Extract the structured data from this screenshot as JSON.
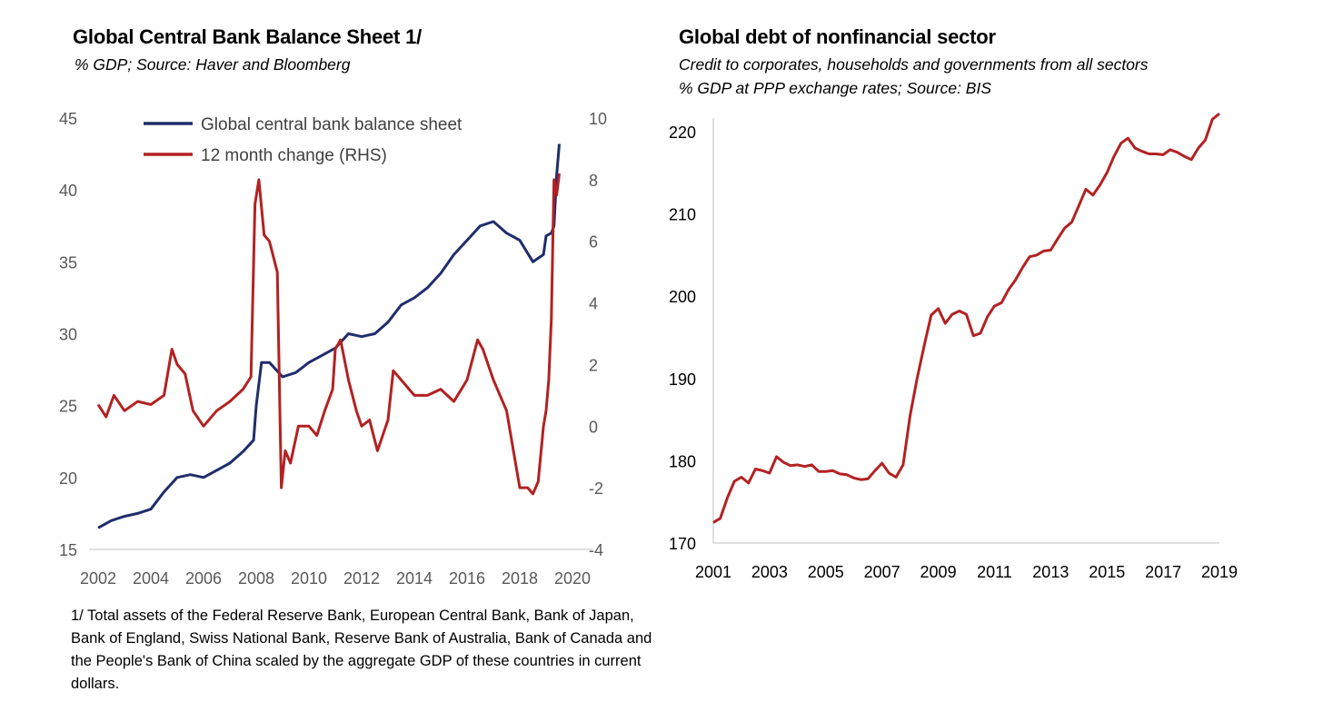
{
  "chart_data": [
    {
      "type": "line",
      "title": "Global Central Bank Balance Sheet 1/",
      "subtitle": "% GDP; Source: Haver and Bloomberg",
      "xlabel": "",
      "ylabel": "",
      "xlim": [
        2002,
        2020
      ],
      "ylim": [
        15,
        45
      ],
      "y2lim": [
        -4,
        10
      ],
      "x_tick_labels": [
        "2002",
        "2004",
        "2006",
        "2008",
        "2010",
        "2012",
        "2014",
        "2016",
        "2018",
        "2020"
      ],
      "y_tick_labels": [
        "15",
        "20",
        "25",
        "30",
        "35",
        "40",
        "45"
      ],
      "y2_tick_labels": [
        "-4",
        "-2",
        "0",
        "2",
        "4",
        "6",
        "8",
        "10"
      ],
      "legend_position": "top-left",
      "grid": false,
      "footnote": "1/ Total assets of the Federal Reserve Bank, European Central Bank, Bank of Japan, Bank of England, Swiss National Bank, Reserve Bank of Australia, Bank of Canada and the People's Bank of China scaled by the aggregate GDP of these countries in current dollars.",
      "series": [
        {
          "name": "Global central bank balance sheet",
          "axis": "left",
          "color": "#1f2d6b",
          "x": [
            2002.0,
            2002.5,
            2003.0,
            2003.5,
            2004.0,
            2004.5,
            2005.0,
            2005.5,
            2006.0,
            2006.5,
            2007.0,
            2007.5,
            2007.9,
            2008.0,
            2008.2,
            2008.5,
            2009.0,
            2009.5,
            2010.0,
            2010.5,
            2011.0,
            2011.5,
            2012.0,
            2012.5,
            2013.0,
            2013.5,
            2014.0,
            2014.5,
            2015.0,
            2015.5,
            2016.0,
            2016.5,
            2017.0,
            2017.5,
            2018.0,
            2018.5,
            2018.9,
            2019.0,
            2019.2,
            2019.3,
            2019.4,
            2019.5
          ],
          "y": [
            16.5,
            17.0,
            17.3,
            17.5,
            17.8,
            19.0,
            20.0,
            20.2,
            20.0,
            20.5,
            21.0,
            21.8,
            22.6,
            25.0,
            28.0,
            28.0,
            27.0,
            27.3,
            28.0,
            28.5,
            29.0,
            30.0,
            29.8,
            30.0,
            30.8,
            32.0,
            32.5,
            33.2,
            34.2,
            35.5,
            36.5,
            37.5,
            37.8,
            37.0,
            36.5,
            35.0,
            35.5,
            36.8,
            37.0,
            37.5,
            41.0,
            43.2
          ]
        },
        {
          "name": "12 month change (RHS)",
          "axis": "right",
          "color": "#b22222",
          "x": [
            2002.0,
            2002.3,
            2002.6,
            2003.0,
            2003.5,
            2004.0,
            2004.5,
            2004.8,
            2005.0,
            2005.3,
            2005.6,
            2006.0,
            2006.5,
            2007.0,
            2007.5,
            2007.8,
            2007.95,
            2008.1,
            2008.3,
            2008.5,
            2008.8,
            2008.95,
            2009.1,
            2009.3,
            2009.6,
            2010.0,
            2010.3,
            2010.6,
            2010.9,
            2011.0,
            2011.2,
            2011.5,
            2011.8,
            2012.0,
            2012.3,
            2012.6,
            2013.0,
            2013.2,
            2013.5,
            2014.0,
            2014.5,
            2015.0,
            2015.5,
            2016.0,
            2016.4,
            2016.6,
            2017.0,
            2017.5,
            2018.0,
            2018.3,
            2018.5,
            2018.7,
            2018.9,
            2019.0,
            2019.1,
            2019.2,
            2019.3,
            2019.4,
            2019.5
          ],
          "y": [
            0.7,
            0.3,
            1.0,
            0.5,
            0.8,
            0.7,
            1.0,
            2.5,
            2.0,
            1.7,
            0.5,
            0.0,
            0.5,
            0.8,
            1.2,
            1.6,
            7.2,
            8.0,
            6.2,
            6.0,
            5.0,
            -2.0,
            -0.8,
            -1.2,
            0.0,
            0.0,
            -0.3,
            0.5,
            1.2,
            2.5,
            2.8,
            1.5,
            0.5,
            0.0,
            0.2,
            -0.8,
            0.2,
            1.8,
            1.5,
            1.0,
            1.0,
            1.2,
            0.8,
            1.5,
            2.8,
            2.5,
            1.5,
            0.5,
            -2.0,
            -2.0,
            -2.2,
            -1.8,
            0.0,
            0.5,
            1.5,
            3.5,
            8.0,
            7.5,
            8.2
          ]
        }
      ]
    },
    {
      "type": "line",
      "title": "Global debt of nonfinancial sector",
      "subtitle": "Credit to corporates, households and governments from all sectors",
      "subtitle2": "% GDP at PPP exchange rates; Source: BIS",
      "xlabel": "",
      "ylabel": "",
      "xlim": [
        2001,
        2019
      ],
      "ylim": [
        170,
        222
      ],
      "x_tick_labels": [
        "2001",
        "2003",
        "2005",
        "2007",
        "2009",
        "2011",
        "2013",
        "2015",
        "2017",
        "2019"
      ],
      "y_tick_labels": [
        "170",
        "180",
        "190",
        "200",
        "210",
        "220"
      ],
      "grid": false,
      "series": [
        {
          "name": "",
          "color": "#b22222",
          "x": [
            2001.0,
            2001.25,
            2001.5,
            2001.75,
            2002.0,
            2002.25,
            2002.5,
            2002.75,
            2003.0,
            2003.25,
            2003.5,
            2003.75,
            2004.0,
            2004.25,
            2004.5,
            2004.75,
            2005.0,
            2005.25,
            2005.5,
            2005.75,
            2006.0,
            2006.25,
            2006.5,
            2006.75,
            2007.0,
            2007.25,
            2007.5,
            2007.75,
            2008.0,
            2008.25,
            2008.5,
            2008.75,
            2009.0,
            2009.25,
            2009.5,
            2009.75,
            2010.0,
            2010.25,
            2010.5,
            2010.75,
            2011.0,
            2011.25,
            2011.5,
            2011.75,
            2012.0,
            2012.25,
            2012.5,
            2012.75,
            2013.0,
            2013.25,
            2013.5,
            2013.75,
            2014.0,
            2014.25,
            2014.5,
            2014.75,
            2015.0,
            2015.25,
            2015.5,
            2015.75,
            2016.0,
            2016.25,
            2016.5,
            2016.75,
            2017.0,
            2017.25,
            2017.5,
            2017.75,
            2018.0,
            2018.25,
            2018.5,
            2018.75,
            2019.0
          ],
          "y": [
            172.5,
            173.0,
            175.5,
            177.5,
            178.0,
            177.3,
            179.0,
            178.8,
            178.5,
            180.5,
            179.8,
            179.4,
            179.5,
            179.3,
            179.5,
            178.7,
            178.7,
            178.8,
            178.4,
            178.3,
            177.9,
            177.7,
            177.8,
            178.8,
            179.7,
            178.5,
            178.0,
            179.5,
            185.5,
            190.0,
            194.0,
            197.7,
            198.5,
            196.7,
            197.8,
            198.2,
            197.8,
            195.2,
            195.5,
            197.5,
            198.8,
            199.2,
            200.8,
            202.0,
            203.5,
            204.8,
            205.0,
            205.5,
            205.6,
            207.0,
            208.3,
            209.0,
            211.0,
            213.0,
            212.3,
            213.5,
            215.0,
            217.0,
            218.6,
            219.2,
            218.0,
            217.6,
            217.3,
            217.3,
            217.2,
            217.8,
            217.5,
            217.0,
            216.6,
            218.0,
            219.0,
            221.5,
            222.2
          ]
        }
      ]
    }
  ]
}
